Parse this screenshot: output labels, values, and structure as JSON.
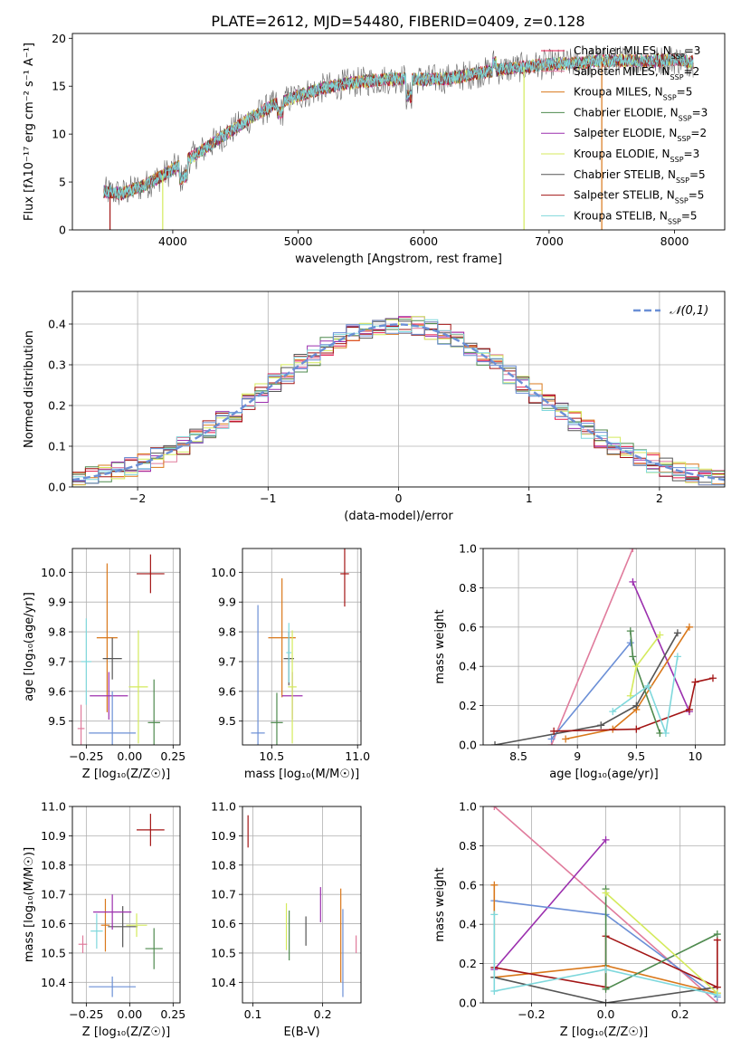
{
  "figure": {
    "title": "PLATE=2612, MJD=54480, FIBERID=0409, z=0.128"
  },
  "colors": {
    "chabrier_miles": "#e6194b",
    "salpeter_miles": "#e07b9c",
    "kroupa_miles": "#d9781b",
    "chabrier_elodie": "#4e8a4e",
    "salpeter_elodie": "#9b2fae",
    "kroupa_elodie": "#d4ea5c",
    "chabrier_stelib": "#555555",
    "salpeter_stelib": "#a31515",
    "kroupa_stelib": "#7fd8dc",
    "data": "#666666",
    "extra_blue": "#6b8fd6"
  },
  "chart_data": [
    {
      "id": "spectrum",
      "type": "line",
      "xlabel": "wavelength [Angstrom, rest frame]",
      "ylabel": "Flux [fλ10⁻¹⁷ erg cm⁻² s⁻¹ A⁻¹]",
      "xlim": [
        3200,
        8400
      ],
      "ylim": [
        0,
        20.5
      ],
      "xticks": [
        4000,
        5000,
        6000,
        7000,
        8000
      ],
      "yticks": [
        0,
        5,
        10,
        15,
        20
      ],
      "grid": false,
      "legend_position": "top-right",
      "continuum": {
        "x": [
          3450,
          3600,
          3800,
          4000,
          4200,
          4400,
          4600,
          4800,
          5000,
          5200,
          5400,
          5600,
          5800,
          6000,
          6200,
          6400,
          6600,
          6800,
          7000,
          7200,
          7400,
          7600,
          7800,
          8000,
          8150
        ],
        "y": [
          4.0,
          3.8,
          4.8,
          6.3,
          8.0,
          9.8,
          11.5,
          13.0,
          14.0,
          14.8,
          15.3,
          15.6,
          15.8,
          15.7,
          15.8,
          16.3,
          16.7,
          17.0,
          17.3,
          17.4,
          17.6,
          17.7,
          17.6,
          17.8,
          17.5
        ]
      },
      "series": [
        {
          "name": "Chabrier MILES, N_SSP=3",
          "label": "Chabrier MILES, N",
          "sub": "SSP",
          "suffix": "=3",
          "color_key": "chabrier_miles"
        },
        {
          "name": "Salpeter MILES, N_SSP=2",
          "label": "Salpeter MILES, N",
          "sub": "SSP",
          "suffix": "=2",
          "color_key": "salpeter_miles"
        },
        {
          "name": "Kroupa MILES, N_SSP=5",
          "label": "Kroupa MILES, N",
          "sub": "SSP",
          "suffix": "=5",
          "color_key": "kroupa_miles"
        },
        {
          "name": "Chabrier ELODIE, N_SSP=3",
          "label": "Chabrier ELODIE, N",
          "sub": "SSP",
          "suffix": "=3",
          "color_key": "chabrier_elodie"
        },
        {
          "name": "Salpeter ELODIE, N_SSP=2",
          "label": "Salpeter ELODIE, N",
          "sub": "SSP",
          "suffix": "=2",
          "color_key": "salpeter_elodie"
        },
        {
          "name": "Kroupa ELODIE, N_SSP=3",
          "label": "Kroupa ELODIE, N",
          "sub": "SSP",
          "suffix": "=3",
          "color_key": "kroupa_elodie"
        },
        {
          "name": "Chabrier STELIB, N_SSP=5",
          "label": "Chabrier STELIB, N",
          "sub": "SSP",
          "suffix": "=5",
          "color_key": "chabrier_stelib"
        },
        {
          "name": "Salpeter STELIB, N_SSP=5",
          "label": "Salpeter STELIB, N",
          "sub": "SSP",
          "suffix": "=5",
          "color_key": "salpeter_stelib"
        },
        {
          "name": "Kroupa STELIB, N_SSP=5",
          "label": "Kroupa STELIB, N",
          "sub": "SSP",
          "suffix": "=5",
          "color_key": "kroupa_stelib"
        }
      ],
      "drops": [
        {
          "x": 3500,
          "color_key": "salpeter_stelib"
        },
        {
          "x": 3920,
          "color_key": "kroupa_elodie"
        },
        {
          "x": 6800,
          "color_key": "kroupa_elodie"
        },
        {
          "x": 7420,
          "color_key": "kroupa_miles"
        }
      ]
    },
    {
      "id": "residuals",
      "type": "histogram",
      "xlabel": "(data-model)/error",
      "ylabel": "Normed distribution",
      "xlim": [
        -2.5,
        2.5
      ],
      "ylim": [
        0,
        0.48
      ],
      "xticks": [
        -2,
        -1,
        0,
        1,
        2
      ],
      "yticks": [
        0.0,
        0.1,
        0.2,
        0.3,
        0.4
      ],
      "grid": true,
      "legend_position": "top-right",
      "reference": {
        "name": "𝒩(0,1)",
        "mean": 0,
        "sigma": 1,
        "color_key": "extra_blue"
      },
      "bin_width": 0.1,
      "series_colors": [
        "chabrier_miles",
        "salpeter_miles",
        "kroupa_miles",
        "chabrier_elodie",
        "salpeter_elodie",
        "kroupa_elodie",
        "chabrier_stelib",
        "salpeter_stelib",
        "kroupa_stelib",
        "extra_blue"
      ]
    },
    {
      "id": "age_vs_Z",
      "type": "errorbar",
      "xlabel": "Z [log₁₀(Z/Z☉)]",
      "ylabel": "age  [log₁₀(age/yr)]",
      "xlim": [
        -0.33,
        0.29
      ],
      "ylim": [
        9.42,
        10.08
      ],
      "xticks": [
        -0.25,
        0.0,
        0.25
      ],
      "xtick_labels": [
        "−0.25",
        "0.00",
        "0.25"
      ],
      "yticks": [
        9.5,
        9.6,
        9.7,
        9.8,
        9.9,
        10.0
      ],
      "grid": true,
      "points": [
        {
          "x": 0.12,
          "y": 9.995,
          "xerr": 0.08,
          "yerr": 0.065,
          "color_key": "salpeter_stelib"
        },
        {
          "x": -0.28,
          "y": 9.475,
          "xerr": 0.02,
          "yerr": 0.08,
          "color_key": "salpeter_miles"
        },
        {
          "x": -0.13,
          "y": 9.78,
          "xerr": 0.06,
          "yerr": 0.25,
          "color_key": "kroupa_miles"
        },
        {
          "x": -0.25,
          "y": 9.7,
          "xerr": 0.03,
          "yerr": 0.145,
          "color_key": "kroupa_stelib"
        },
        {
          "x": -0.1,
          "y": 9.71,
          "xerr": 0.055,
          "yerr": 0.07,
          "color_key": "chabrier_stelib"
        },
        {
          "x": -0.12,
          "y": 9.585,
          "xerr": 0.11,
          "yerr": 0.08,
          "color_key": "salpeter_elodie"
        },
        {
          "x": 0.05,
          "y": 9.615,
          "xerr": 0.055,
          "yerr": 0.19,
          "color_key": "kroupa_elodie"
        },
        {
          "x": 0.14,
          "y": 9.495,
          "xerr": 0.035,
          "yerr": 0.145,
          "color_key": "chabrier_elodie"
        },
        {
          "x": -0.1,
          "y": 9.46,
          "xerr": 0.135,
          "yerr": 0.14,
          "color_key": "extra_blue"
        }
      ]
    },
    {
      "id": "age_vs_mass",
      "type": "errorbar",
      "xlabel": "mass [log₁₀(M/M☉)]",
      "ylabel": "",
      "xlim": [
        10.33,
        11.02
      ],
      "ylim": [
        9.42,
        10.08
      ],
      "xticks": [
        10.5,
        11.0
      ],
      "xtick_labels": [
        "10.5",
        "11.0"
      ],
      "yticks": [
        9.5,
        9.6,
        9.7,
        9.8,
        9.9,
        10.0
      ],
      "grid": true,
      "points": [
        {
          "x": 10.925,
          "y": 9.995,
          "xerr": 0.025,
          "yerr": 0.11,
          "color_key": "salpeter_stelib"
        },
        {
          "x": 10.56,
          "y": 9.78,
          "xerr": 0.08,
          "yerr": 0.2,
          "color_key": "kroupa_miles"
        },
        {
          "x": 10.6,
          "y": 9.71,
          "xerr": 0.03,
          "yerr": 0.09,
          "color_key": "chabrier_stelib"
        },
        {
          "x": 10.62,
          "y": 9.585,
          "xerr": 0.06,
          "yerr": 0.08,
          "color_key": "salpeter_elodie"
        },
        {
          "x": 10.62,
          "y": 9.615,
          "xerr": 0.025,
          "yerr": 0.19,
          "color_key": "kroupa_elodie"
        },
        {
          "x": 10.53,
          "y": 9.495,
          "xerr": 0.035,
          "yerr": 0.1,
          "color_key": "chabrier_elodie"
        },
        {
          "x": 10.42,
          "y": 9.46,
          "xerr": 0.04,
          "yerr": 0.43,
          "color_key": "extra_blue"
        },
        {
          "x": 10.6,
          "y": 9.73,
          "xerr": 0.015,
          "yerr": 0.1,
          "color_key": "kroupa_stelib"
        }
      ]
    },
    {
      "id": "weight_vs_age",
      "type": "line",
      "xlabel": "age  [log₁₀(age/yr)]",
      "ylabel": "mass weight",
      "xlim": [
        8.2,
        10.25
      ],
      "ylim": [
        0.0,
        1.0
      ],
      "xticks": [
        8.5,
        9.0,
        9.5,
        10.0
      ],
      "yticks": [
        0.0,
        0.2,
        0.4,
        0.6,
        0.8,
        1.0
      ],
      "grid": true,
      "series": [
        {
          "color_key": "salpeter_miles",
          "x": [
            8.78,
            9.47
          ],
          "y": [
            0.0,
            1.0
          ]
        },
        {
          "color_key": "extra_blue",
          "x": [
            8.78,
            9.45
          ],
          "y": [
            0.03,
            0.52
          ]
        },
        {
          "color_key": "salpeter_elodie",
          "x": [
            9.47,
            9.95
          ],
          "y": [
            0.83,
            0.17
          ]
        },
        {
          "color_key": "kroupa_miles",
          "x": [
            8.9,
            9.3,
            9.5,
            9.95
          ],
          "y": [
            0.03,
            0.08,
            0.18,
            0.6
          ]
        },
        {
          "color_key": "chabrier_stelib",
          "x": [
            8.3,
            9.2,
            9.5,
            9.85
          ],
          "y": [
            0.0,
            0.1,
            0.2,
            0.57
          ]
        },
        {
          "color_key": "salpeter_stelib",
          "x": [
            8.8,
            9.5,
            9.95,
            10.0,
            10.15
          ],
          "y": [
            0.07,
            0.08,
            0.18,
            0.32,
            0.34
          ]
        },
        {
          "color_key": "chabrier_elodie",
          "x": [
            9.45,
            9.47,
            9.7
          ],
          "y": [
            0.58,
            0.45,
            0.06
          ]
        },
        {
          "color_key": "kroupa_elodie",
          "x": [
            9.45,
            9.5,
            9.7
          ],
          "y": [
            0.25,
            0.4,
            0.56
          ]
        },
        {
          "color_key": "kroupa_stelib",
          "x": [
            9.3,
            9.6,
            9.75,
            9.85
          ],
          "y": [
            0.17,
            0.3,
            0.06,
            0.45
          ]
        }
      ]
    },
    {
      "id": "mass_vs_Z",
      "type": "errorbar",
      "xlabel": "Z [log₁₀(Z/Z☉)]",
      "ylabel": "mass [log₁₀(M/M☉)]",
      "xlim": [
        -0.33,
        0.29
      ],
      "ylim": [
        10.33,
        11.0
      ],
      "xticks": [
        -0.25,
        0.0,
        0.25
      ],
      "xtick_labels": [
        "−0.25",
        "0.00",
        "0.25"
      ],
      "yticks": [
        10.4,
        10.5,
        10.6,
        10.7,
        10.8,
        10.9,
        11.0
      ],
      "grid": true,
      "points": [
        {
          "x": 0.12,
          "y": 10.92,
          "xerr": 0.08,
          "yerr": 0.055,
          "color_key": "salpeter_stelib"
        },
        {
          "x": -0.27,
          "y": 10.53,
          "xerr": 0.025,
          "yerr": 0.03,
          "color_key": "salpeter_miles"
        },
        {
          "x": -0.14,
          "y": 10.595,
          "xerr": 0.025,
          "yerr": 0.09,
          "color_key": "kroupa_miles"
        },
        {
          "x": -0.19,
          "y": 10.575,
          "xerr": 0.035,
          "yerr": 0.06,
          "color_key": "kroupa_stelib"
        },
        {
          "x": -0.04,
          "y": 10.59,
          "xerr": 0.085,
          "yerr": 0.07,
          "color_key": "chabrier_stelib"
        },
        {
          "x": -0.1,
          "y": 10.64,
          "xerr": 0.11,
          "yerr": 0.06,
          "color_key": "salpeter_elodie"
        },
        {
          "x": 0.04,
          "y": 10.595,
          "xerr": 0.06,
          "yerr": 0.04,
          "color_key": "kroupa_elodie"
        },
        {
          "x": 0.14,
          "y": 10.515,
          "xerr": 0.05,
          "yerr": 0.07,
          "color_key": "chabrier_elodie"
        },
        {
          "x": -0.1,
          "y": 10.385,
          "xerr": 0.135,
          "yerr": 0.035,
          "color_key": "extra_blue"
        }
      ]
    },
    {
      "id": "mass_vs_EBV",
      "type": "errorbar",
      "xlabel": "E(B-V)",
      "ylabel": "",
      "xlim": [
        0.085,
        0.255
      ],
      "ylim": [
        10.33,
        11.0
      ],
      "xticks": [
        0.1,
        0.2
      ],
      "xtick_labels": [
        "0.1",
        "0.2"
      ],
      "yticks": [
        10.4,
        10.5,
        10.6,
        10.7,
        10.8,
        10.9,
        11.0
      ],
      "grid": true,
      "points": [
        {
          "x": 0.093,
          "y": 10.915,
          "xerr": 0,
          "yerr": 0.055,
          "color_key": "salpeter_stelib"
        },
        {
          "x": 0.148,
          "y": 10.59,
          "xerr": 0,
          "yerr": 0.08,
          "color_key": "kroupa_elodie"
        },
        {
          "x": 0.152,
          "y": 10.56,
          "xerr": 0,
          "yerr": 0.085,
          "color_key": "chabrier_elodie"
        },
        {
          "x": 0.176,
          "y": 10.575,
          "xerr": 0,
          "yerr": 0.05,
          "color_key": "chabrier_stelib"
        },
        {
          "x": 0.197,
          "y": 10.665,
          "xerr": 0,
          "yerr": 0.06,
          "color_key": "salpeter_elodie"
        },
        {
          "x": 0.226,
          "y": 10.56,
          "xerr": 0,
          "yerr": 0.16,
          "color_key": "kroupa_miles"
        },
        {
          "x": 0.229,
          "y": 10.5,
          "xerr": 0,
          "yerr": 0.15,
          "color_key": "extra_blue"
        },
        {
          "x": 0.248,
          "y": 10.53,
          "xerr": 0,
          "yerr": 0.03,
          "color_key": "salpeter_miles"
        }
      ]
    },
    {
      "id": "weight_vs_Z",
      "type": "line",
      "xlabel": "Z [log₁₀(Z/Z☉)]",
      "ylabel": "mass weight",
      "xlim": [
        -0.33,
        0.32
      ],
      "ylim": [
        0.0,
        1.0
      ],
      "xticks": [
        -0.2,
        0.0,
        0.2
      ],
      "xtick_labels": [
        "−0.2",
        "0.0",
        "0.2"
      ],
      "yticks": [
        0.0,
        0.2,
        0.4,
        0.6,
        0.8,
        1.0
      ],
      "grid": true,
      "series": [
        {
          "color_key": "salpeter_miles",
          "x": [
            -0.3,
            0.3
          ],
          "y": [
            1.0,
            0.0
          ]
        },
        {
          "color_key": "salpeter_elodie",
          "x": [
            -0.3,
            0.0
          ],
          "y": [
            0.17,
            0.83
          ]
        },
        {
          "color_key": "extra_blue",
          "x": [
            -0.3,
            0.0,
            0.3
          ],
          "y": [
            0.52,
            0.45,
            0.03
          ]
        },
        {
          "color_key": "kroupa_miles",
          "x": [
            -0.3,
            -0.3,
            0.0,
            0.3
          ],
          "y": [
            0.6,
            0.13,
            0.19,
            0.05
          ]
        },
        {
          "color_key": "chabrier_stelib",
          "x": [
            -0.3,
            0.0,
            0.3
          ],
          "y": [
            0.13,
            0.0,
            0.08
          ]
        },
        {
          "color_key": "salpeter_stelib",
          "x": [
            -0.3,
            0.0,
            0.0,
            0.3,
            0.3
          ],
          "y": [
            0.18,
            0.08,
            0.34,
            0.08,
            0.32
          ]
        },
        {
          "color_key": "chabrier_elodie",
          "x": [
            0.0,
            0.0,
            0.3
          ],
          "y": [
            0.58,
            0.07,
            0.35
          ]
        },
        {
          "color_key": "kroupa_elodie",
          "x": [
            0.0,
            0.3
          ],
          "y": [
            0.56,
            0.05
          ]
        },
        {
          "color_key": "kroupa_stelib",
          "x": [
            -0.3,
            -0.3,
            0.0,
            0.3
          ],
          "y": [
            0.45,
            0.06,
            0.17,
            0.04
          ]
        }
      ]
    }
  ]
}
